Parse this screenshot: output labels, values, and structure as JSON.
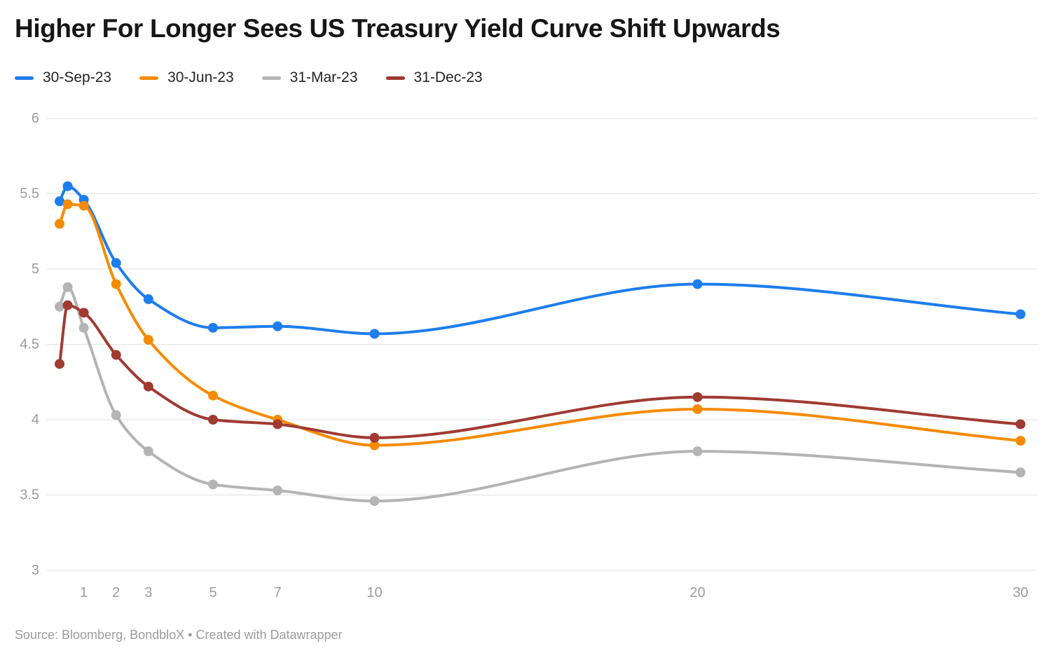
{
  "title": "Higher For Longer Sees US Treasury Yield Curve Shift Upwards",
  "footer": "Source: Bloomberg, BondbloX • Created with Datawrapper",
  "colors": {
    "background": "#ffffff",
    "gridline": "#e0e0e0",
    "axis_text": "#9c9c9c",
    "title_text": "#161616",
    "legend_text": "#242424"
  },
  "chart_data": {
    "type": "line",
    "x": [
      0.25,
      0.5,
      1,
      2,
      3,
      5,
      7,
      10,
      20,
      30
    ],
    "x_ticks": [
      "1",
      "2",
      "3",
      "5",
      "7",
      "10",
      "20",
      "30"
    ],
    "x_tick_values": [
      1,
      2,
      3,
      5,
      7,
      10,
      20,
      30
    ],
    "y_ticks": [
      "6",
      "5.5",
      "5",
      "4.5",
      "4",
      "3.5",
      "3"
    ],
    "y_tick_values": [
      6,
      5.5,
      5,
      4.5,
      4,
      3.5,
      3
    ],
    "ylim": [
      3,
      6
    ],
    "xlim": [
      0,
      30
    ],
    "grid": "horizontal",
    "legend_position": "top-left",
    "markers": true,
    "curve": "monotone",
    "series": [
      {
        "name": "30-Sep-23",
        "color": "#1d7ded",
        "values": [
          5.45,
          5.55,
          5.46,
          5.04,
          4.8,
          4.61,
          4.62,
          4.57,
          4.9,
          4.7
        ]
      },
      {
        "name": "30-Jun-23",
        "color": "#f68b00",
        "values": [
          5.3,
          5.43,
          5.42,
          4.9,
          4.53,
          4.16,
          4.0,
          3.83,
          4.07,
          3.86
        ]
      },
      {
        "name": "31-Mar-23",
        "color": "#b4b4b4",
        "values": [
          4.75,
          4.88,
          4.61,
          4.03,
          3.79,
          3.57,
          3.53,
          3.46,
          3.79,
          3.65
        ]
      },
      {
        "name": "31-Dec-23",
        "color": "#a03a32",
        "values": [
          4.37,
          4.76,
          4.71,
          4.43,
          4.22,
          4.0,
          3.97,
          3.88,
          4.15,
          3.97
        ]
      }
    ]
  }
}
